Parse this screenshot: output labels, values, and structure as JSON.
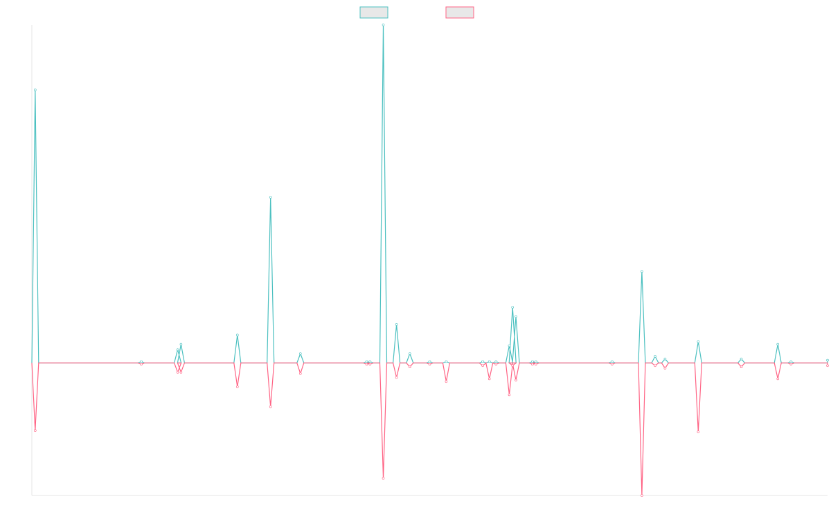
{
  "chart_data": {
    "type": "line",
    "title": "",
    "xlabel": "",
    "ylabel": "",
    "grid": false,
    "legend": "top-center",
    "xlim": [
      0,
      240
    ],
    "ylim": [
      -1.0,
      2.55
    ],
    "baseline": 0,
    "x": [
      1,
      33,
      44,
      45,
      62,
      72,
      81,
      101,
      102,
      106,
      110,
      114,
      120,
      125,
      136,
      138,
      140,
      144,
      145,
      146,
      151,
      152,
      175,
      184,
      188,
      191,
      201,
      214,
      225,
      229,
      247
    ],
    "series": [
      {
        "name": "",
        "color": "#4bc0c0",
        "values": [
          2.06,
          0.01,
          0.1,
          0.14,
          0.21,
          1.25,
          0.07,
          0.01,
          0.01,
          2.55,
          0.29,
          0.07,
          0.01,
          0.01,
          0.01,
          0.01,
          0.01,
          0.13,
          0.42,
          0.35,
          0.01,
          0.01,
          0.01,
          0.69,
          0.05,
          0.03,
          0.16,
          0.03,
          0.14,
          0.01,
          0.02
        ]
      },
      {
        "name": "",
        "color": "#ff6384",
        "values": [
          -0.51,
          -0.01,
          -0.07,
          -0.07,
          -0.18,
          -0.33,
          -0.08,
          -0.01,
          -0.01,
          -0.87,
          -0.11,
          -0.03,
          -0.01,
          -0.14,
          -0.02,
          -0.12,
          -0.01,
          -0.24,
          -0.02,
          -0.13,
          -0.01,
          -0.01,
          -0.01,
          -1.0,
          -0.02,
          -0.04,
          -0.52,
          -0.03,
          -0.12,
          -0.01,
          -0.02
        ]
      }
    ]
  }
}
